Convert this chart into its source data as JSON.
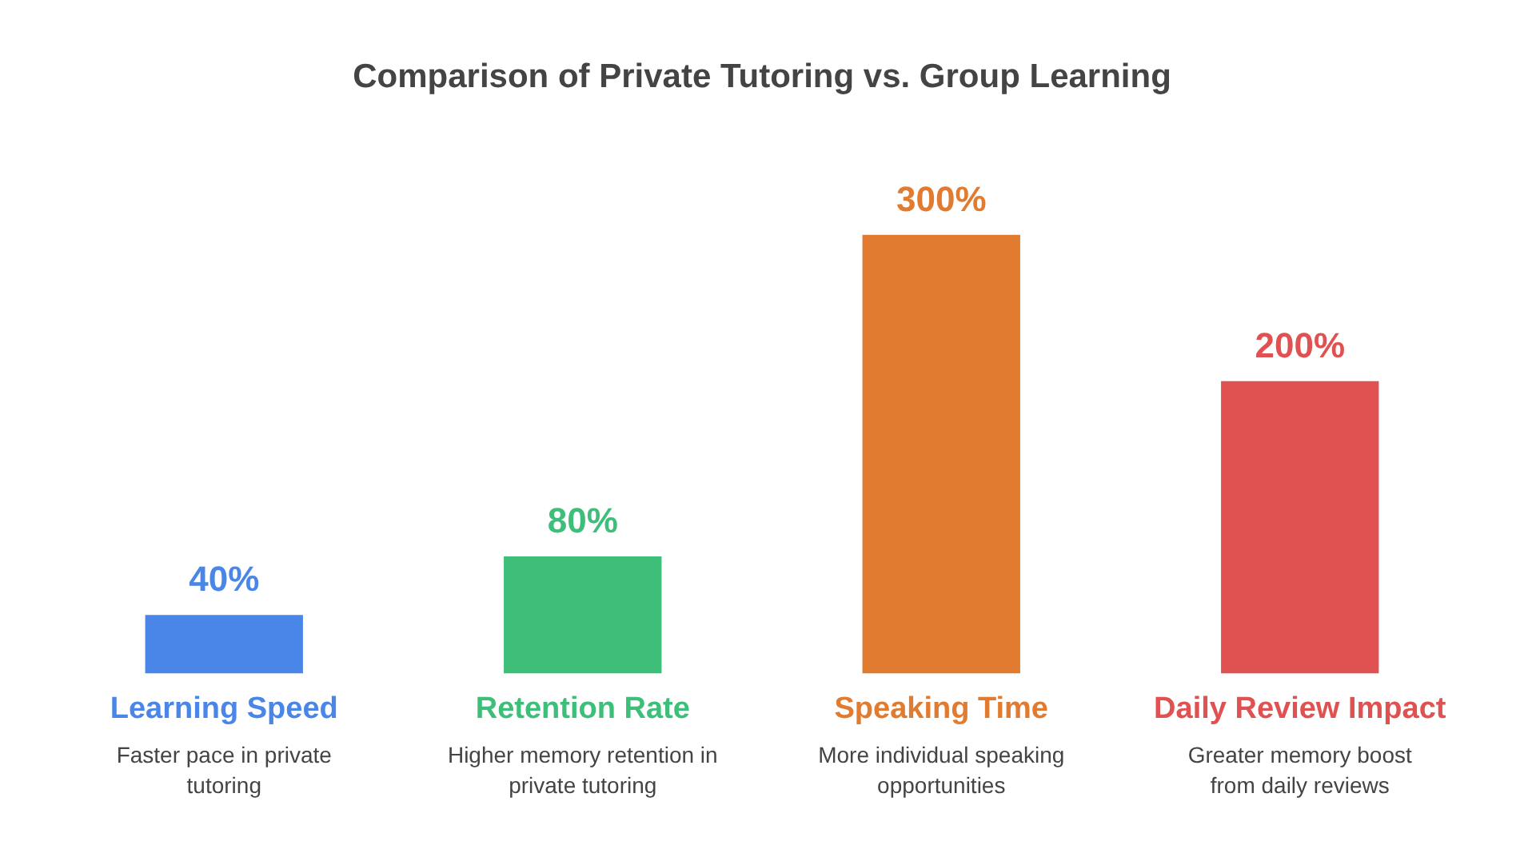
{
  "chart_data": {
    "type": "bar",
    "title": "Comparison of Private Tutoring vs. Group Learning",
    "categories": [
      "Learning Speed",
      "Retention Rate",
      "Speaking Time",
      "Daily Review Impact"
    ],
    "values": [
      40,
      80,
      300,
      200
    ],
    "value_labels": [
      "40%",
      "80%",
      "300%",
      "200%"
    ],
    "colors": [
      "#4a86e8",
      "#3dbf7a",
      "#e07b30",
      "#e05252"
    ],
    "annotations": [
      "Faster pace in private tutoring",
      "Higher memory retention in private tutoring",
      "More individual speaking opportunities",
      "Greater memory boost from daily reviews"
    ],
    "grid": false,
    "legend": false
  }
}
